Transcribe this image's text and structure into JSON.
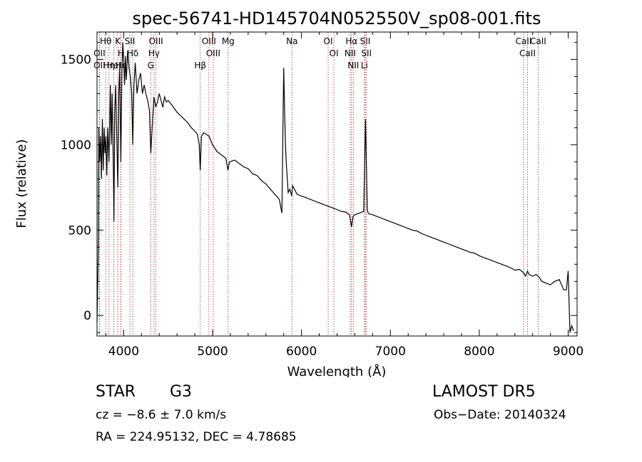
{
  "chart_data": {
    "type": "line",
    "title": "spec-56741-HD145704N052550V_sp08-001.fits",
    "xlabel": "Wavelength (Å)",
    "ylabel": "Flux (relative)",
    "xlim": [
      3700,
      9100
    ],
    "ylim": [
      -120,
      1660
    ],
    "xticks": [
      4000,
      5000,
      6000,
      7000,
      8000,
      9000
    ],
    "yticks": [
      0,
      500,
      1000,
      1500
    ],
    "xtick_labels": [
      "4000",
      "5000",
      "6000",
      "7000",
      "8000",
      "9000"
    ],
    "ytick_labels": [
      "0",
      "500",
      "1000",
      "1500"
    ],
    "line_color": "#000000",
    "marker_color": "#a52a2a",
    "series": [
      {
        "x": [
          3700,
          3715,
          3720,
          3730,
          3740,
          3750,
          3760,
          3770,
          3780,
          3790,
          3800,
          3810,
          3820,
          3835,
          3850,
          3860,
          3870,
          3885,
          3890,
          3900,
          3910,
          3920,
          3934,
          3945,
          3955,
          3968,
          3980,
          3990,
          4000,
          4010,
          4020,
          4030,
          4045,
          4060,
          4075,
          4090,
          4102,
          4115,
          4130,
          4150,
          4170,
          4190,
          4210,
          4230,
          4250,
          4270,
          4290,
          4305,
          4320,
          4340,
          4360,
          4380,
          4400,
          4420,
          4440,
          4460,
          4480,
          4500,
          4530,
          4560,
          4600,
          4640,
          4680,
          4720,
          4760,
          4800,
          4830,
          4850,
          4861,
          4875,
          4900,
          4930,
          4960,
          5000,
          5050,
          5100,
          5150,
          5172,
          5190,
          5250,
          5300,
          5350,
          5400,
          5450,
          5500,
          5550,
          5600,
          5650,
          5700,
          5750,
          5780,
          5800,
          5810,
          5820,
          5830,
          5850,
          5870,
          5890,
          5900,
          5920,
          5950,
          6000,
          6050,
          6100,
          6150,
          6200,
          6250,
          6300,
          6350,
          6400,
          6450,
          6500,
          6540,
          6563,
          6580,
          6600,
          6650,
          6700,
          6720,
          6740,
          6750,
          6760,
          6800,
          6850,
          6900,
          6950,
          7000,
          7050,
          7100,
          7150,
          7200,
          7250,
          7300,
          7350,
          7400,
          7450,
          7500,
          7550,
          7600,
          7650,
          7700,
          7750,
          7800,
          7850,
          7900,
          7950,
          8000,
          8050,
          8100,
          8150,
          8200,
          8250,
          8300,
          8350,
          8400,
          8450,
          8498,
          8520,
          8542,
          8560,
          8600,
          8640,
          8662,
          8680,
          8700,
          8750,
          8800,
          8850,
          8900,
          8950,
          8980,
          9000,
          9020,
          9040,
          9060
        ],
        "y": [
          -40,
          400,
          1100,
          900,
          1050,
          800,
          1150,
          850,
          1100,
          950,
          1050,
          820,
          1100,
          900,
          1350,
          1000,
          1300,
          800,
          550,
          1200,
          1350,
          1100,
          750,
          1300,
          1450,
          900,
          1420,
          1600,
          1500,
          1350,
          1520,
          1380,
          1550,
          1450,
          1400,
          1300,
          1000,
          1350,
          1480,
          1300,
          1380,
          1420,
          1300,
          1350,
          1300,
          1260,
          1200,
          950,
          1100,
          1280,
          1220,
          1250,
          1300,
          1260,
          1220,
          1280,
          1250,
          1260,
          1240,
          1220,
          1190,
          1170,
          1150,
          1130,
          1100,
          1080,
          1060,
          1000,
          850,
          1050,
          1070,
          1060,
          1050,
          1000,
          960,
          940,
          920,
          850,
          900,
          910,
          890,
          870,
          860,
          830,
          820,
          790,
          770,
          740,
          710,
          680,
          600,
          1450,
          1200,
          1000,
          880,
          720,
          740,
          700,
          760,
          740,
          710,
          700,
          690,
          680,
          670,
          660,
          650,
          640,
          630,
          620,
          610,
          605,
          590,
          520,
          580,
          590,
          600,
          610,
          1150,
          620,
          600,
          595,
          590,
          580,
          570,
          560,
          550,
          540,
          530,
          520,
          510,
          500,
          495,
          480,
          470,
          460,
          450,
          440,
          430,
          420,
          410,
          400,
          390,
          380,
          370,
          365,
          350,
          340,
          330,
          320,
          310,
          300,
          290,
          280,
          265,
          270,
          250,
          230,
          260,
          240,
          230,
          240,
          230,
          220,
          200,
          190,
          180,
          200,
          210,
          150,
          150,
          260,
          -100,
          -60,
          -90
        ]
      }
    ],
    "line_markers": [
      {
        "label": "Hθ",
        "x": 3798
      },
      {
        "label": "OII",
        "x": 3727
      },
      {
        "label": "OII",
        "x": 3727
      },
      {
        "label": "K",
        "x": 3934
      },
      {
        "label": "H",
        "x": 3969
      },
      {
        "label": "Hε",
        "x": 3970
      },
      {
        "label": "HeI",
        "x": 3889
      },
      {
        "label": "Hη",
        "x": 3835
      },
      {
        "label": "SII",
        "x": 4070
      },
      {
        "label": "Hδ",
        "x": 4102
      },
      {
        "label": "OIII",
        "x": 4363
      },
      {
        "label": "Hγ",
        "x": 4341
      },
      {
        "label": "G",
        "x": 4305
      },
      {
        "label": "OIII",
        "x": 4959
      },
      {
        "label": "OIII",
        "x": 5007
      },
      {
        "label": "Hβ",
        "x": 4861
      },
      {
        "label": "Mg",
        "x": 5175
      },
      {
        "label": "Na",
        "x": 5893
      },
      {
        "label": "OI",
        "x": 6300
      },
      {
        "label": "OI",
        "x": 6364
      },
      {
        "label": "Hα",
        "x": 6563
      },
      {
        "label": "NII",
        "x": 6548
      },
      {
        "label": "NII",
        "x": 6583
      },
      {
        "label": "SII",
        "x": 6717
      },
      {
        "label": "SII",
        "x": 6731
      },
      {
        "label": "Li",
        "x": 6708
      },
      {
        "label": "CaII",
        "x": 8498
      },
      {
        "label": "CaII",
        "x": 8542
      },
      {
        "label": "CaII",
        "x": 8662
      }
    ],
    "grid": false,
    "legend": "none"
  },
  "info": {
    "object_type": "STAR",
    "subclass": "G3",
    "survey": "LAMOST DR5",
    "cz": "cz = −8.6 ± 7.0 km/s",
    "obs_date": "Obs−Date: 20140324",
    "radec": "RA = 224.95132, DEC =   4.78685"
  }
}
